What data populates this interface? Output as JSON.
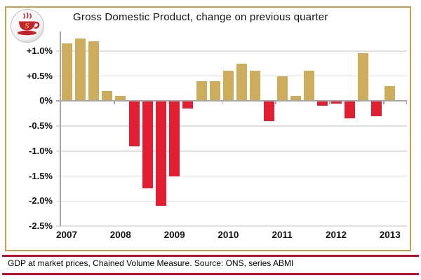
{
  "header": {
    "logo_letter": "S"
  },
  "footer": {
    "caption": "GDP at market prices, Chained Volume Measure. Source: ONS, series ABMI"
  },
  "colors": {
    "positive": "#ccad5c",
    "negative": "#e41e32",
    "panel_border": "#c3a050",
    "rule_red": "#c60c2c",
    "gridline": "#e0e0e0",
    "axis": "#a6a6a6",
    "text": "#111111",
    "logo_red": "#c4232c",
    "logo_gold": "#d8a94e"
  },
  "chart_data": {
    "type": "bar",
    "title": "Gross Domestic Product, change on previous quarter",
    "xlabel": "",
    "ylabel": "",
    "unit": "%",
    "grid": true,
    "ylim": [
      -2.5,
      1.39
    ],
    "categories": [
      "2007 Q1",
      "2007 Q2",
      "2007 Q3",
      "2007 Q4",
      "2008 Q1",
      "2008 Q2",
      "2008 Q3",
      "2008 Q4",
      "2009 Q1",
      "2009 Q2",
      "2009 Q3",
      "2009 Q4",
      "2010 Q1",
      "2010 Q2",
      "2010 Q3",
      "2010 Q4",
      "2011 Q1",
      "2011 Q2",
      "2011 Q3",
      "2011 Q4",
      "2012 Q1",
      "2012 Q2",
      "2012 Q3",
      "2012 Q4",
      "2013 Q1"
    ],
    "values": [
      1.15,
      1.25,
      1.2,
      0.2,
      0.1,
      -0.9,
      -1.75,
      -2.1,
      -1.5,
      -0.15,
      0.4,
      0.4,
      0.6,
      0.75,
      0.6,
      -0.4,
      0.5,
      0.1,
      0.6,
      -0.1,
      -0.05,
      -0.35,
      0.95,
      -0.3,
      0.3
    ],
    "year_labels": [
      "2007",
      "2008",
      "2009",
      "2010",
      "2011",
      "2012",
      "2013"
    ],
    "yticks": [
      {
        "v": 1.0,
        "label": "+1.0%"
      },
      {
        "v": 0.5,
        "label": "+0.5%"
      },
      {
        "v": 0.0,
        "label": "0%"
      },
      {
        "v": -0.5,
        "label": "-0.5%"
      },
      {
        "v": -1.0,
        "label": "-1.0%"
      },
      {
        "v": -1.5,
        "label": "-1.5%"
      },
      {
        "v": -2.0,
        "label": "-2.0%"
      },
      {
        "v": -2.5,
        "label": "-2.5%"
      }
    ],
    "legend": null
  }
}
